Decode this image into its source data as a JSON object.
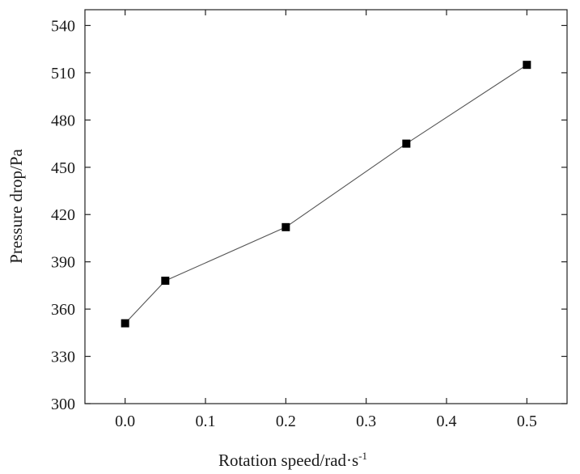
{
  "chart_data": {
    "type": "line",
    "title": "",
    "xlabel": "Rotation speed/rad·s",
    "xlabel_superscript": "-1",
    "ylabel": "Pressure drop/Pa",
    "x": [
      0.0,
      0.05,
      0.2,
      0.35,
      0.5
    ],
    "series": [
      {
        "values": [
          351,
          378,
          412,
          465,
          515
        ]
      }
    ],
    "xlim": [
      -0.05,
      0.55
    ],
    "ylim": [
      300,
      550
    ],
    "xticks": [
      0.0,
      0.1,
      0.2,
      0.3,
      0.4,
      0.5
    ],
    "xtick_labels": [
      "0.0",
      "0.1",
      "0.2",
      "0.3",
      "0.4",
      "0.5"
    ],
    "yticks": [
      300,
      330,
      360,
      390,
      420,
      450,
      480,
      510,
      540
    ],
    "ytick_labels": [
      "300",
      "330",
      "360",
      "390",
      "420",
      "450",
      "480",
      "510",
      "540"
    ],
    "marker": "square",
    "line_color": "#555555",
    "marker_color": "#000000",
    "grid": false,
    "legend": "none"
  }
}
